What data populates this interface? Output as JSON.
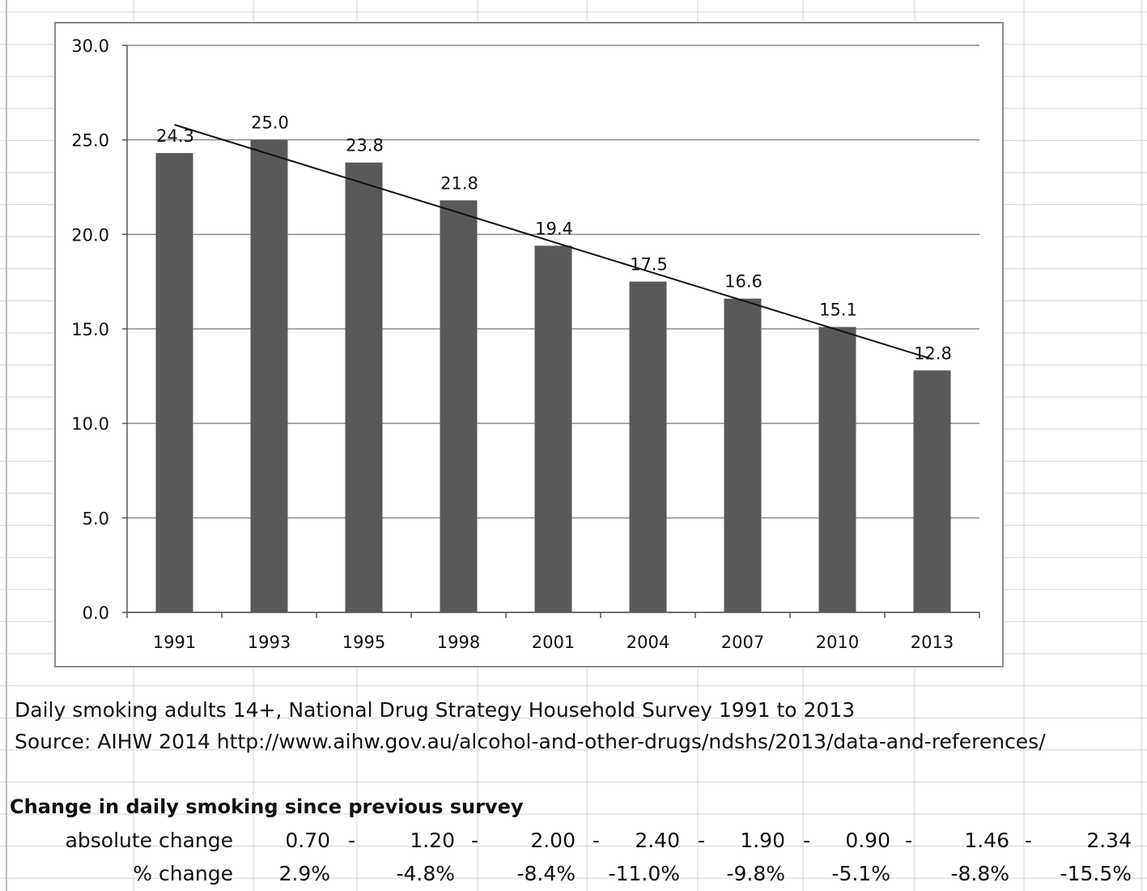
{
  "chart_data": {
    "type": "bar",
    "categories": [
      "1991",
      "1993",
      "1995",
      "1998",
      "2001",
      "2004",
      "2007",
      "2010",
      "2013"
    ],
    "values": [
      24.3,
      25.0,
      23.8,
      21.8,
      19.4,
      17.5,
      16.6,
      15.1,
      12.8
    ],
    "data_labels": [
      "24.3",
      "25.0",
      "23.8",
      "21.8",
      "19.4",
      "17.5",
      "16.6",
      "15.1",
      "12.8"
    ],
    "yticks": [
      "0.0",
      "5.0",
      "10.0",
      "15.0",
      "20.0",
      "25.0",
      "30.0"
    ],
    "ylim": [
      0,
      30
    ],
    "grid": true,
    "trendline": {
      "type": "linear",
      "start": 25.8,
      "end": 13.4
    },
    "bar_color": "#595959",
    "title": "",
    "xlabel": "",
    "ylabel": ""
  },
  "captions": {
    "line1": "Daily smoking adults 14+, National Drug Strategy Household Survey 1991 to 2013",
    "line2": "Source: AIHW 2014 http://www.aihw.gov.au/alcohol-and-other-drugs/ndshs/2013/data-and-references/"
  },
  "table": {
    "title": "Change in daily smoking since previous survey",
    "rows": [
      {
        "label": "absolute change",
        "values": [
          "0.70",
          "1.20",
          "2.00",
          "2.40",
          "1.90",
          "0.90",
          "1.46",
          "2.34"
        ],
        "dash": "-"
      },
      {
        "label": "% change",
        "values": [
          "2.9%",
          "-4.8%",
          "-8.4%",
          "-11.0%",
          "-9.8%",
          "-5.1%",
          "-8.8%",
          "-15.5%"
        ]
      }
    ]
  }
}
